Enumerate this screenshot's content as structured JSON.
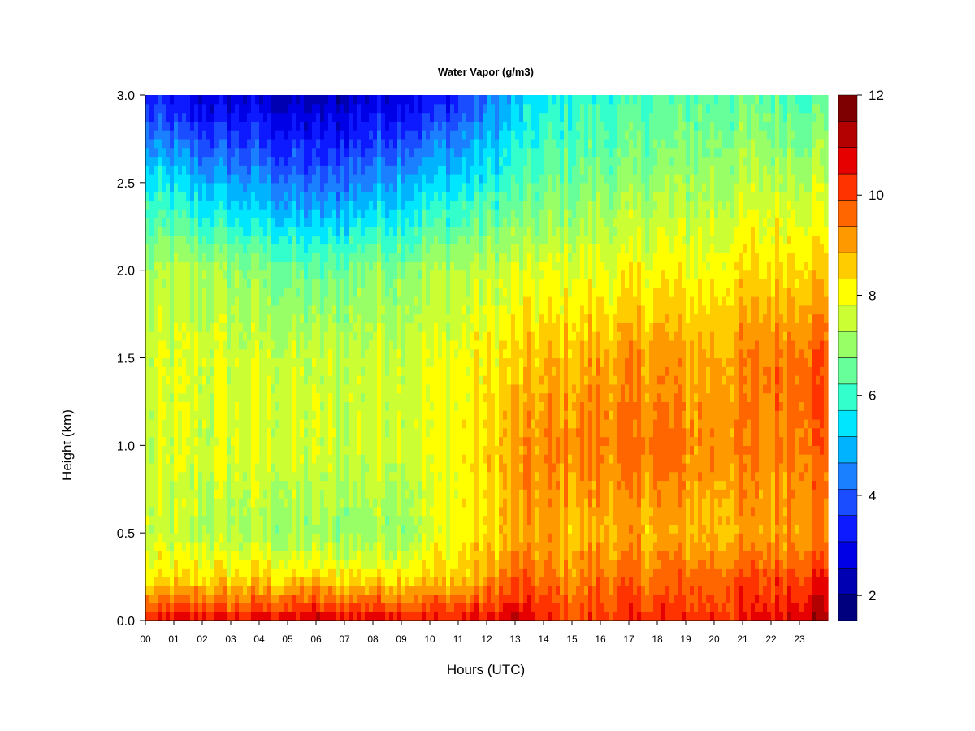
{
  "chart_data": {
    "type": "heatmap",
    "title": "Water Vapor (g/m3)",
    "xlabel": "Hours (UTC)",
    "ylabel": "Height (km)",
    "x_ticks": [
      "00",
      "01",
      "02",
      "03",
      "04",
      "05",
      "06",
      "07",
      "08",
      "09",
      "10",
      "11",
      "12",
      "13",
      "14",
      "15",
      "16",
      "17",
      "18",
      "19",
      "20",
      "21",
      "22",
      "23"
    ],
    "y_ticks": [
      "0.0",
      "0.5",
      "1.0",
      "1.5",
      "2.0",
      "2.5",
      "3.0"
    ],
    "xlim": [
      0,
      24
    ],
    "ylim": [
      0,
      3.0
    ],
    "colorbar": {
      "range": [
        1.5,
        12
      ],
      "ticks": [
        "2",
        "4",
        "6",
        "8",
        "10",
        "12"
      ],
      "colors": [
        "#00007f",
        "#0000b3",
        "#0000e6",
        "#0d1aff",
        "#1a4dff",
        "#1a80ff",
        "#00b3ff",
        "#00e6ff",
        "#33ffcc",
        "#66ff99",
        "#99ff66",
        "#ccff33",
        "#ffff00",
        "#ffcc00",
        "#ff9900",
        "#ff6600",
        "#ff3300",
        "#e60000",
        "#b30000",
        "#7f0000"
      ]
    },
    "time_hours": [
      0,
      1,
      2,
      3,
      4,
      5,
      6,
      7,
      8,
      9,
      10,
      11,
      12,
      13,
      14,
      15,
      16,
      17,
      18,
      19,
      20,
      21,
      22,
      23,
      24
    ],
    "heights_km": [
      0.0,
      0.25,
      0.5,
      1.0,
      1.5,
      2.0,
      2.5,
      3.0
    ],
    "values_g_m3": [
      [
        10.3,
        8.0,
        7.5,
        7.5,
        7.5,
        7.1,
        5.6,
        3.2
      ],
      [
        10.5,
        8.2,
        7.4,
        7.6,
        7.6,
        7.2,
        5.4,
        2.9
      ],
      [
        10.6,
        8.4,
        7.3,
        7.6,
        7.7,
        7.2,
        5.0,
        2.6
      ],
      [
        10.5,
        8.3,
        7.2,
        7.7,
        7.6,
        7.0,
        4.8,
        2.6
      ],
      [
        10.6,
        8.4,
        7.2,
        7.7,
        7.6,
        6.8,
        4.6,
        2.6
      ],
      [
        10.8,
        8.2,
        7.1,
        7.6,
        7.5,
        6.6,
        4.3,
        2.4
      ],
      [
        10.9,
        8.3,
        7.0,
        7.5,
        7.4,
        6.4,
        4.0,
        2.2
      ],
      [
        10.7,
        8.3,
        7.0,
        7.6,
        7.5,
        6.7,
        4.3,
        2.4
      ],
      [
        10.8,
        8.3,
        7.1,
        7.7,
        7.6,
        6.9,
        4.7,
        2.7
      ],
      [
        10.7,
        8.4,
        7.1,
        7.8,
        7.7,
        7.0,
        5.0,
        2.9
      ],
      [
        10.5,
        8.5,
        7.6,
        7.8,
        7.8,
        7.2,
        5.2,
        3.1
      ],
      [
        10.5,
        8.6,
        8.0,
        8.0,
        7.9,
        7.3,
        5.4,
        3.4
      ],
      [
        10.6,
        8.9,
        8.3,
        8.4,
        8.1,
        7.4,
        5.7,
        4.2
      ],
      [
        10.9,
        9.6,
        8.9,
        9.0,
        8.4,
        7.6,
        6.1,
        5.0
      ],
      [
        10.4,
        9.4,
        9.0,
        9.2,
        8.6,
        7.7,
        6.4,
        5.5
      ],
      [
        10.0,
        9.2,
        8.7,
        9.3,
        8.8,
        7.8,
        6.6,
        5.8
      ],
      [
        10.2,
        9.5,
        8.9,
        9.5,
        9.0,
        7.9,
        6.8,
        6.0
      ],
      [
        10.3,
        9.4,
        8.8,
        9.4,
        9.0,
        7.9,
        6.8,
        6.0
      ],
      [
        10.4,
        9.5,
        8.9,
        9.6,
        9.2,
        8.1,
        7.0,
        6.2
      ],
      [
        10.2,
        9.6,
        8.8,
        9.3,
        8.9,
        8.0,
        7.1,
        6.3
      ],
      [
        10.3,
        9.7,
        8.8,
        9.3,
        9.0,
        8.1,
        7.2,
        6.4
      ],
      [
        10.4,
        9.8,
        8.9,
        9.3,
        9.2,
        8.3,
        7.3,
        6.4
      ],
      [
        10.6,
        9.9,
        9.0,
        9.3,
        9.4,
        8.4,
        7.4,
        6.4
      ],
      [
        11.0,
        10.2,
        9.3,
        9.8,
        9.8,
        8.6,
        7.5,
        6.4
      ],
      [
        11.5,
        10.4,
        9.3,
        9.8,
        9.8,
        8.6,
        7.5,
        6.4
      ]
    ]
  }
}
